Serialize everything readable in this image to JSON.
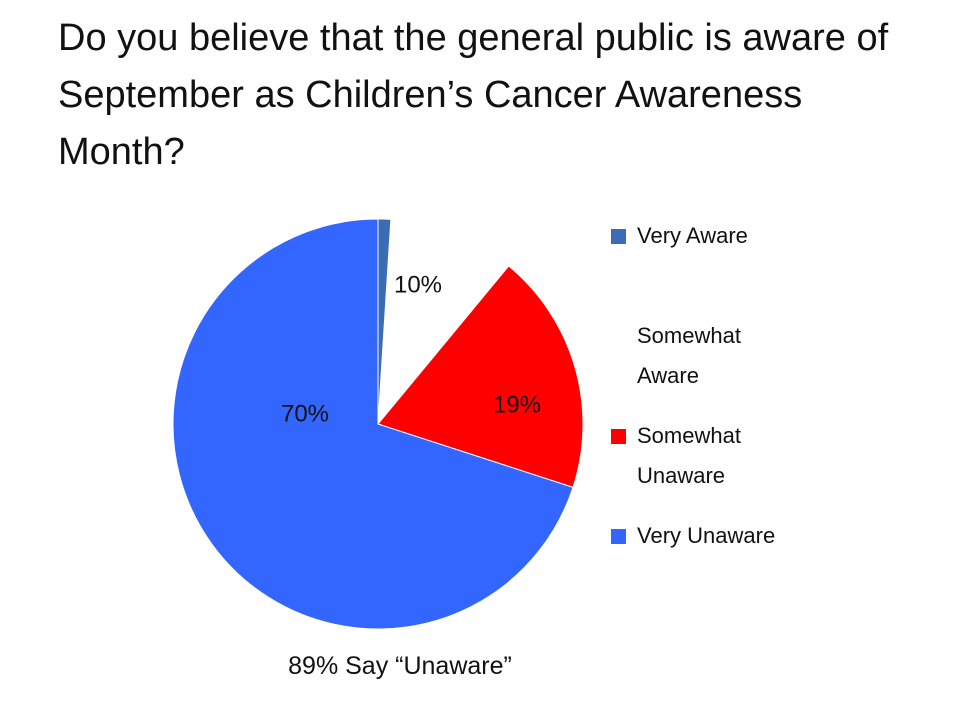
{
  "chart_data": {
    "type": "pie",
    "title": "Do you believe that the general public is aware of September as Children’s Cancer Awareness Month?",
    "categories": [
      "Very Aware",
      "Somewhat Aware",
      "Somewhat Unaware",
      "Very Unaware"
    ],
    "values": [
      1,
      10,
      19,
      70
    ],
    "value_labels": [
      null,
      "10%",
      "19%",
      "70%"
    ],
    "colors": [
      "#3a6db5",
      "#ffffff",
      "#ff0000",
      "#3366ff"
    ],
    "annotation": "89% Say “Unaware”",
    "legend": "right"
  }
}
